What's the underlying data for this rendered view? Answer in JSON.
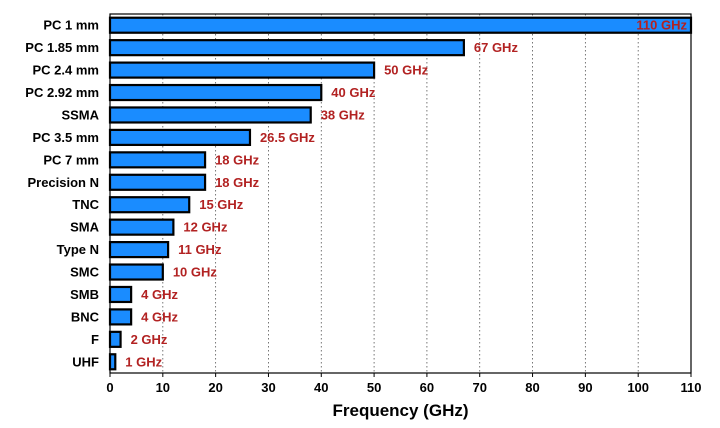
{
  "chart_data": {
    "type": "bar",
    "orientation": "horizontal",
    "categories": [
      "PC 1 mm",
      "PC 1.85 mm",
      "PC 2.4 mm",
      "PC 2.92 mm",
      "SSMA",
      "PC 3.5 mm",
      "PC 7 mm",
      "Precision N",
      "TNC",
      "SMA",
      "Type N",
      "SMC",
      "SMB",
      "BNC",
      "F",
      "UHF"
    ],
    "values": [
      110,
      67,
      50,
      40,
      38,
      26.5,
      18,
      18,
      15,
      12,
      11,
      10,
      4,
      4,
      2,
      1
    ],
    "data_labels": [
      "110 GHz",
      "67 GHz",
      "50 GHz",
      "40 GHz",
      "38 GHz",
      "26.5 GHz",
      "18 GHz",
      "18 GHz",
      "15 GHz",
      "12 GHz",
      "11 GHz",
      "10 GHz",
      "4 GHz",
      "4 GHz",
      "2 GHz",
      "1 GHz"
    ],
    "xlabel": "Frequency (GHz)",
    "ylabel": "",
    "xlim": [
      0,
      110
    ],
    "xticks": [
      0,
      10,
      20,
      30,
      40,
      50,
      60,
      70,
      80,
      90,
      100,
      110
    ],
    "grid": "vertical dotted",
    "legend": "none",
    "colors": {
      "bar_fill": "#1a8cff",
      "bar_stroke": "#000000",
      "label_color": "#b22222"
    }
  }
}
